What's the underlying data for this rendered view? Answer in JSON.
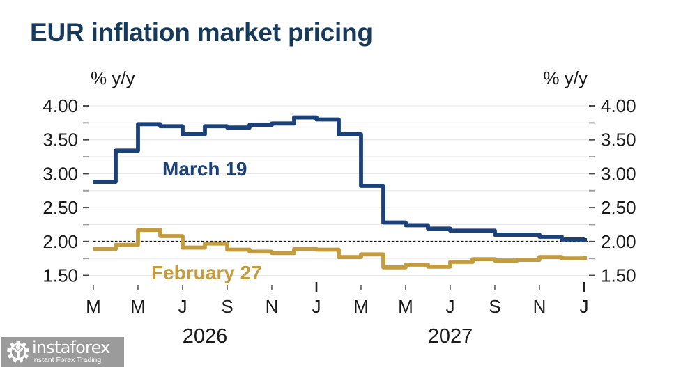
{
  "title": "EUR inflation market pricing",
  "colors": {
    "title": "#17395a",
    "march_series": "#1a4179",
    "february_series": "#c39c40",
    "grid": "#e9e9e9",
    "tick_major": "#4a4a4a",
    "tick_minor": "#a0a0a0",
    "axis_text": "#1a1a1a",
    "reference_line": "#111111",
    "logo_bg": "#9b9b9b"
  },
  "chart_data": {
    "type": "line",
    "step": true,
    "unit_left": "% y/y",
    "unit_right": "% y/y",
    "x": [
      "Mar 2026",
      "Apr 2026",
      "May 2026",
      "Jun 2026",
      "Jul 2026",
      "Aug 2026",
      "Sep 2026",
      "Oct 2026",
      "Nov 2026",
      "Dec 2026",
      "Jan 2027",
      "Feb 2027",
      "Mar 2027",
      "Apr 2027",
      "May 2027",
      "Jun 2027",
      "Jul 2027",
      "Aug 2027",
      "Sep 2027",
      "Oct 2027",
      "Nov 2027",
      "Dec 2027",
      "Jan 2028"
    ],
    "x_tick_labels": [
      "M",
      "M",
      "J",
      "S",
      "N",
      "J",
      "M",
      "M",
      "J",
      "S",
      "N",
      "J"
    ],
    "year_labels": [
      "2026",
      "2027"
    ],
    "y_tick_labels": [
      "4.00",
      "3.50",
      "3.00",
      "2.50",
      "2.00",
      "1.50"
    ],
    "ylim": [
      1.5,
      4.0
    ],
    "y_major_step": 0.5,
    "y_minor_step": 0.25,
    "grid_step": 0.25,
    "reference_line_value": 2.0,
    "series": [
      {
        "name": "March 19",
        "color": "#1a4179",
        "values": [
          2.88,
          3.34,
          3.73,
          3.7,
          3.58,
          3.7,
          3.68,
          3.72,
          3.74,
          3.83,
          3.8,
          3.58,
          2.82,
          2.28,
          2.24,
          2.19,
          2.16,
          2.16,
          2.1,
          2.1,
          2.07,
          2.03,
          2.02
        ]
      },
      {
        "name": "February 27",
        "color": "#c39c40",
        "values": [
          1.89,
          1.95,
          2.17,
          2.08,
          1.91,
          1.97,
          1.88,
          1.85,
          1.83,
          1.89,
          1.88,
          1.77,
          1.81,
          1.62,
          1.66,
          1.63,
          1.7,
          1.74,
          1.72,
          1.73,
          1.77,
          1.75,
          1.76
        ]
      }
    ],
    "annotations": [
      {
        "text": "March 19",
        "color": "#1a4179"
      },
      {
        "text": "February 27",
        "color": "#c39c40"
      }
    ]
  },
  "footer": {
    "logo_text": "instaforex",
    "logo_subtext": "Instant Forex Trading"
  }
}
